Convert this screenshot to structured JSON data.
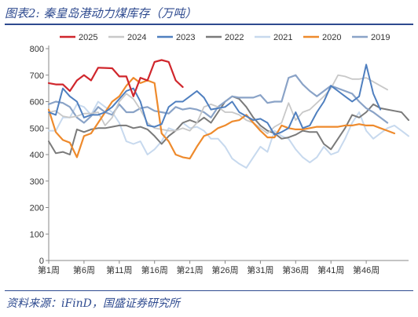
{
  "header": {
    "title": "图表2:  秦皇岛港动力煤库存（万吨）"
  },
  "footer": {
    "source": "资料来源：iFinD，国盛证券研究所"
  },
  "chart_data": {
    "type": "line",
    "title": "图表2:  秦皇岛港动力煤库存（万吨）",
    "ylim": [
      0,
      800
    ],
    "yticks": [
      0,
      100,
      200,
      300,
      400,
      500,
      600,
      700,
      800
    ],
    "xlim": [
      1,
      52
    ],
    "x_tick_labels": [
      "第1周",
      "第6周",
      "第11周",
      "第16周",
      "第21周",
      "第26周",
      "第31周",
      "第36周",
      "第41周",
      "第46周"
    ],
    "x_tick_values": [
      1,
      6,
      11,
      16,
      21,
      26,
      31,
      36,
      41,
      46
    ],
    "grid": false,
    "legend_position": "top",
    "series": [
      {
        "name": "2025",
        "color": "#d0262c",
        "width": 2.2,
        "values": [
          670,
          665,
          665,
          640,
          680,
          700,
          680,
          728,
          727,
          726,
          695,
          695,
          620,
          690,
          680,
          750,
          757,
          750,
          680,
          655
        ]
      },
      {
        "name": "2024",
        "color": "#c8c8c8",
        "width": 1.8,
        "values": [
          560,
          565,
          545,
          540,
          545,
          555,
          555,
          560,
          510,
          540,
          600,
          630,
          610,
          570,
          520,
          500,
          495,
          490,
          490,
          500,
          490,
          520,
          580,
          590,
          580,
          560,
          560,
          550,
          530,
          520,
          500,
          480,
          505,
          520,
          595,
          530,
          560,
          570,
          595,
          620,
          650,
          700,
          695,
          685,
          685,
          690,
          675,
          660,
          645
        ]
      },
      {
        "name": "2023",
        "color": "#4f7fbf",
        "width": 2.0,
        "values": [
          560,
          550,
          650,
          620,
          600,
          540,
          550,
          550,
          560,
          580,
          610,
          640,
          650,
          600,
          510,
          505,
          515,
          580,
          600,
          600,
          620,
          640,
          615,
          570,
          575,
          580,
          600,
          560,
          545,
          530,
          535,
          520,
          475,
          485,
          500,
          560,
          500,
          510,
          560,
          600,
          660,
          640,
          620,
          600,
          620,
          740,
          630,
          570
        ]
      },
      {
        "name": "2022",
        "color": "#7a7a7a",
        "width": 2.0,
        "values": [
          450,
          405,
          410,
          400,
          495,
          485,
          495,
          500,
          500,
          505,
          510,
          510,
          500,
          505,
          495,
          470,
          440,
          470,
          490,
          520,
          530,
          520,
          540,
          520,
          560,
          600,
          620,
          610,
          580,
          540,
          510,
          490,
          480,
          460,
          465,
          475,
          490,
          485,
          485,
          440,
          420,
          460,
          500,
          550,
          540,
          560,
          590,
          575,
          570,
          565,
          560,
          530
        ]
      },
      {
        "name": "2021",
        "color": "#c7d9ee",
        "width": 2.0,
        "values": [
          490,
          490,
          540,
          540,
          590,
          580,
          550,
          600,
          580,
          560,
          520,
          450,
          440,
          450,
          400,
          420,
          450,
          500,
          490,
          520,
          500,
          505,
          490,
          460,
          460,
          430,
          385,
          365,
          350,
          390,
          430,
          410,
          490,
          470,
          460,
          420,
          390,
          370,
          390,
          430,
          400,
          410,
          460,
          520,
          560,
          490,
          460,
          480,
          500,
          510,
          490,
          470
        ]
      },
      {
        "name": "2020",
        "color": "#ee8a2c",
        "width": 2.2,
        "values": [
          570,
          485,
          455,
          445,
          390,
          470,
          480,
          520,
          560,
          600,
          620,
          660,
          690,
          670,
          680,
          670,
          480,
          450,
          400,
          390,
          385,
          430,
          470,
          480,
          500,
          510,
          525,
          530,
          550,
          520,
          490,
          465,
          465,
          510,
          500,
          495,
          495,
          500,
          505,
          505,
          505,
          505,
          510,
          510,
          515,
          510,
          510,
          500,
          490,
          480
        ]
      },
      {
        "name": "2019",
        "color": "#8aa3c7",
        "width": 2.2,
        "values": [
          590,
          600,
          595,
          580,
          540,
          520,
          545,
          580,
          560,
          550,
          590,
          560,
          560,
          575,
          580,
          565,
          560,
          555,
          580,
          570,
          575,
          570,
          560,
          540,
          580,
          600,
          620,
          615,
          615,
          615,
          625,
          595,
          600,
          600,
          690,
          700,
          665,
          640,
          620,
          640,
          660,
          650,
          640,
          630,
          600,
          575,
          560,
          540,
          520
        ]
      }
    ]
  }
}
